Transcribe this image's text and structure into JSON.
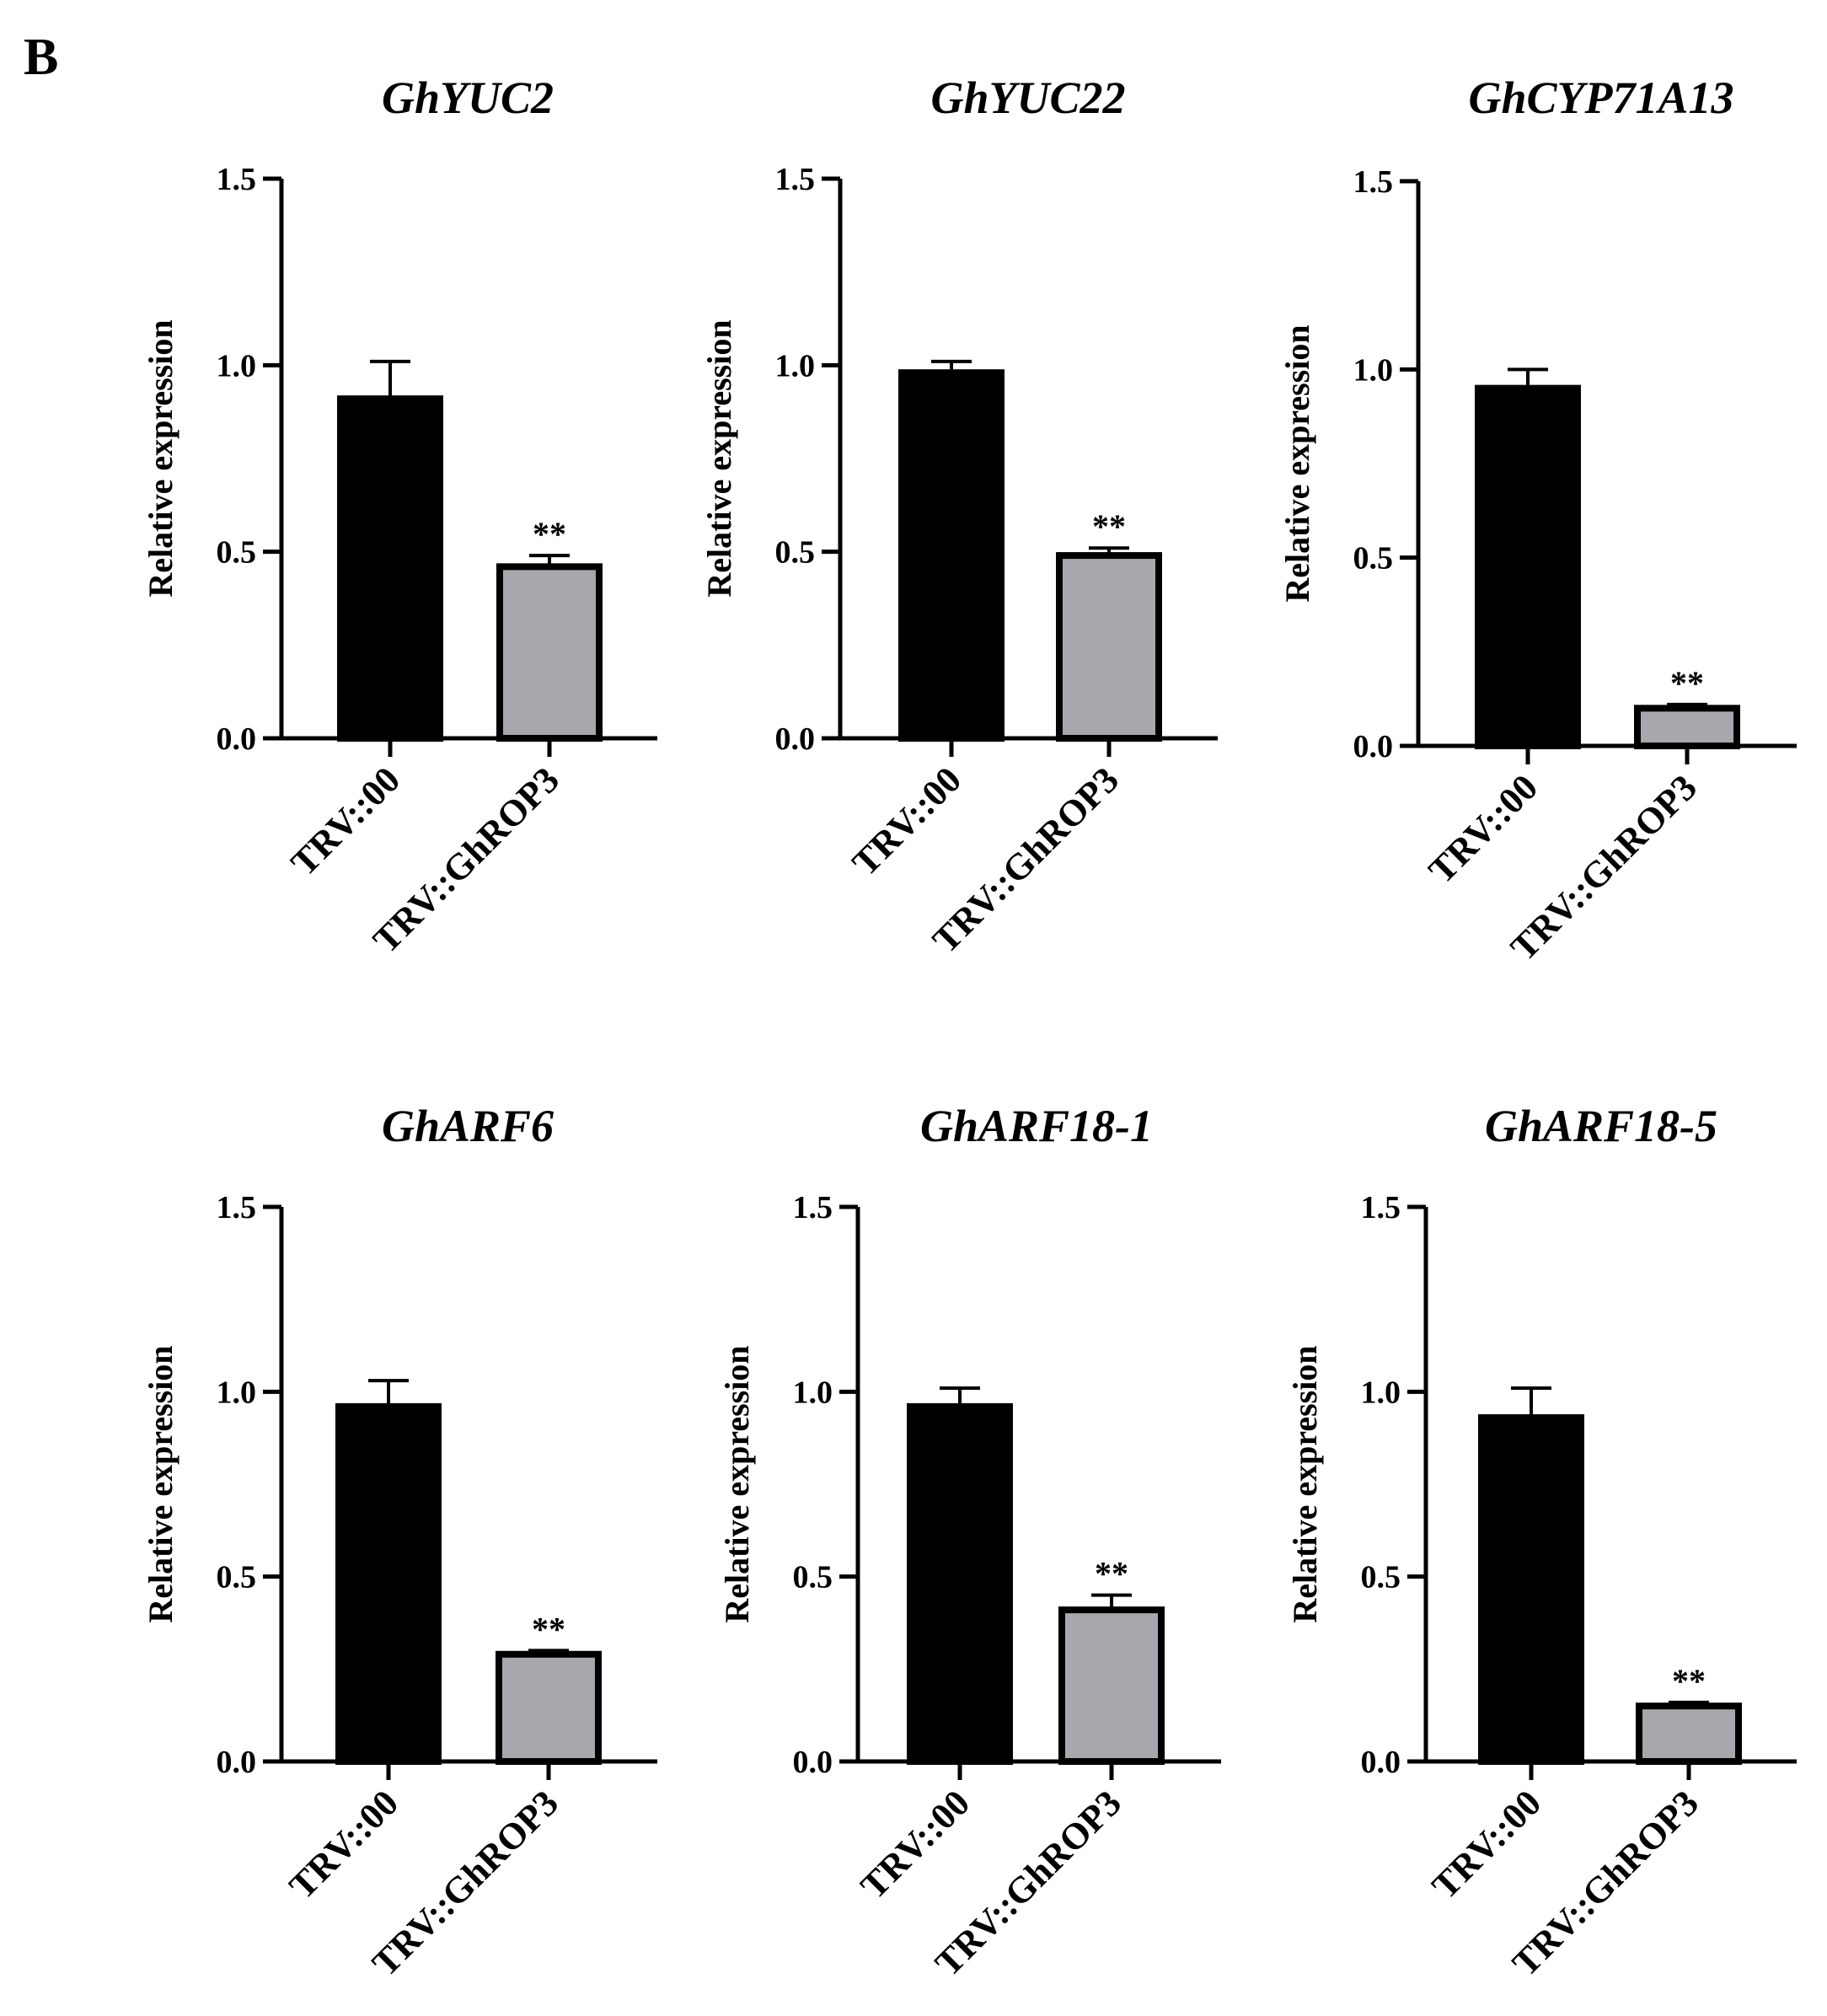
{
  "panel_label": "B",
  "colors": {
    "control": "#000000",
    "treatment": "#a7a8ad",
    "axis": "#000000"
  },
  "chart_data": [
    {
      "type": "bar",
      "title": "GhYUC2",
      "ylabel": "Relative expression",
      "xlabel": "",
      "ylim": [
        0,
        1.5
      ],
      "yticks": [
        "0.0",
        "0.5",
        "1.0",
        "1.5"
      ],
      "categories": [
        "TRV::00",
        "TRV::GhROP3"
      ],
      "values": [
        0.91,
        0.46
      ],
      "errors": [
        0.1,
        0.03
      ],
      "significance": [
        "",
        "**"
      ]
    },
    {
      "type": "bar",
      "title": "GhYUC22",
      "ylabel": "Relative expression",
      "xlabel": "",
      "ylim": [
        0,
        1.5
      ],
      "yticks": [
        "0.0",
        "0.5",
        "1.0",
        "1.5"
      ],
      "categories": [
        "TRV::00",
        "TRV::GhROP3"
      ],
      "values": [
        0.98,
        0.49
      ],
      "errors": [
        0.03,
        0.02
      ],
      "significance": [
        "",
        "**"
      ]
    },
    {
      "type": "bar",
      "title": "GhCYP71A13",
      "ylabel": "Relative expression",
      "xlabel": "",
      "ylim": [
        0,
        1.5
      ],
      "yticks": [
        "0.0",
        "0.5",
        "1.0",
        "1.5"
      ],
      "categories": [
        "TRV::00",
        "TRV::GhROP3"
      ],
      "values": [
        0.95,
        0.1
      ],
      "errors": [
        0.05,
        0.01
      ],
      "significance": [
        "",
        "**"
      ]
    },
    {
      "type": "bar",
      "title": "GhARF6",
      "ylabel": "Relative expression",
      "xlabel": "",
      "ylim": [
        0,
        1.5
      ],
      "yticks": [
        "0.0",
        "0.5",
        "1.0",
        "1.5"
      ],
      "categories": [
        "TRV::00",
        "TRV::GhROP3"
      ],
      "values": [
        0.96,
        0.29
      ],
      "errors": [
        0.07,
        0.01
      ],
      "significance": [
        "",
        "**"
      ]
    },
    {
      "type": "bar",
      "title": "GhARF18-1",
      "ylabel": "Relative expression",
      "xlabel": "",
      "ylim": [
        0,
        1.5
      ],
      "yticks": [
        "0.0",
        "0.5",
        "1.0",
        "1.5"
      ],
      "categories": [
        "TRV::00",
        "TRV::GhROP3"
      ],
      "values": [
        0.96,
        0.41
      ],
      "errors": [
        0.05,
        0.04
      ],
      "significance": [
        "",
        "**"
      ]
    },
    {
      "type": "bar",
      "title": "GhARF18-5",
      "ylabel": "Relative expression",
      "xlabel": "",
      "ylim": [
        0,
        1.5
      ],
      "yticks": [
        "0.0",
        "0.5",
        "1.0",
        "1.5"
      ],
      "categories": [
        "TRV::00",
        "TRV::GhROP3"
      ],
      "values": [
        0.93,
        0.15
      ],
      "errors": [
        0.08,
        0.01
      ],
      "significance": [
        "",
        "**"
      ]
    }
  ]
}
